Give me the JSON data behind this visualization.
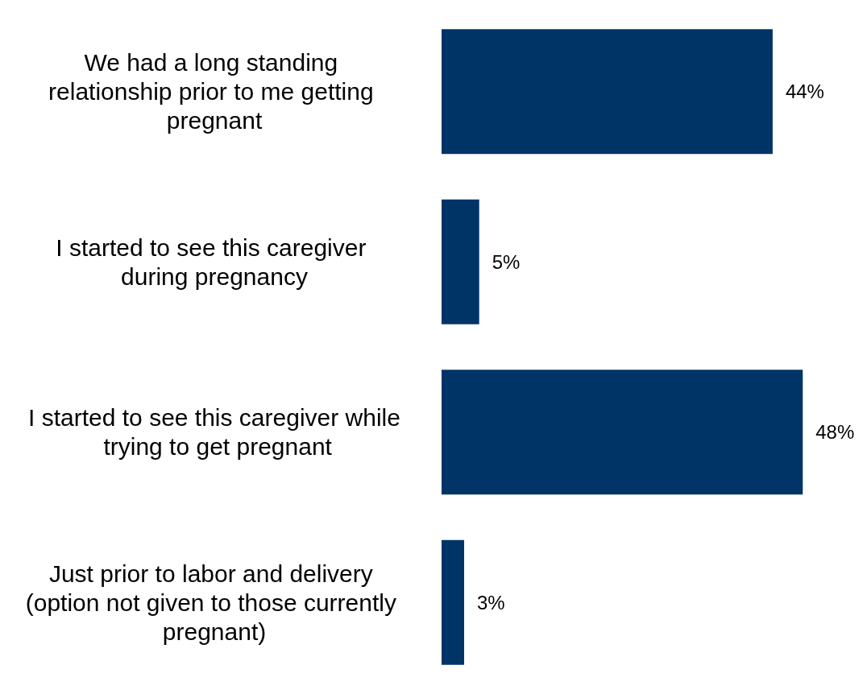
{
  "chart_data": {
    "type": "bar",
    "orientation": "horizontal",
    "categories": [
      "We had a long standing relationship prior to me getting pregnant",
      "I started to see this caregiver during pregnancy",
      "I started to see this caregiver while trying to get pregnant",
      "Just prior to labor and delivery (option not given to those currently pregnant)"
    ],
    "values": [
      44,
      5,
      48,
      3
    ],
    "color": "#003466",
    "value_labels": [
      "44%",
      "5%",
      "48%",
      "3%"
    ],
    "grid": false
  }
}
